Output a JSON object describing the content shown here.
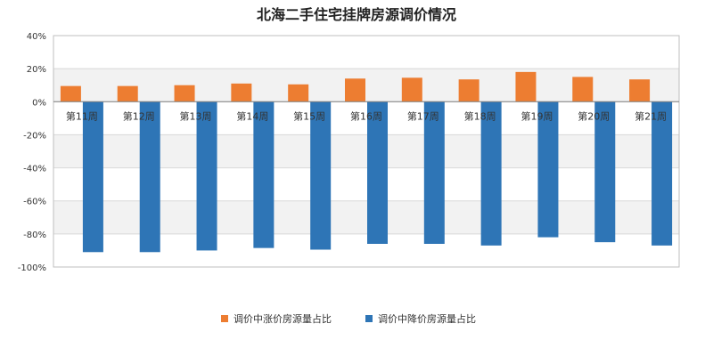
{
  "chart_data": {
    "type": "bar",
    "title": "北海二手住宅挂牌房源调价情况",
    "categories": [
      "第11周",
      "第12周",
      "第13周",
      "第14周",
      "第15周",
      "第16周",
      "第17周",
      "第18周",
      "第19周",
      "第20周",
      "第21周"
    ],
    "series": [
      {
        "name": "调价中涨价房源量占比",
        "color": "#ed7d31",
        "values": [
          9.5,
          9.5,
          10,
          11,
          10.5,
          14,
          14.5,
          13.5,
          18,
          15,
          13.5
        ]
      },
      {
        "name": "调价中降价房源量占比",
        "color": "#2e75b6",
        "values": [
          -91,
          -91,
          -90,
          -88.5,
          -89.5,
          -86,
          -86,
          -87,
          -82,
          -85,
          -87
        ]
      }
    ],
    "ylim": [
      -100,
      40
    ],
    "yticks": [
      "40%",
      "20%",
      "0%",
      "-20%",
      "-40%",
      "-60%",
      "-80%",
      "-100%"
    ],
    "ytick_values": [
      40,
      20,
      0,
      -20,
      -40,
      -60,
      -80,
      -100
    ],
    "grid": "horizontal bands",
    "legend_position": "bottom"
  }
}
